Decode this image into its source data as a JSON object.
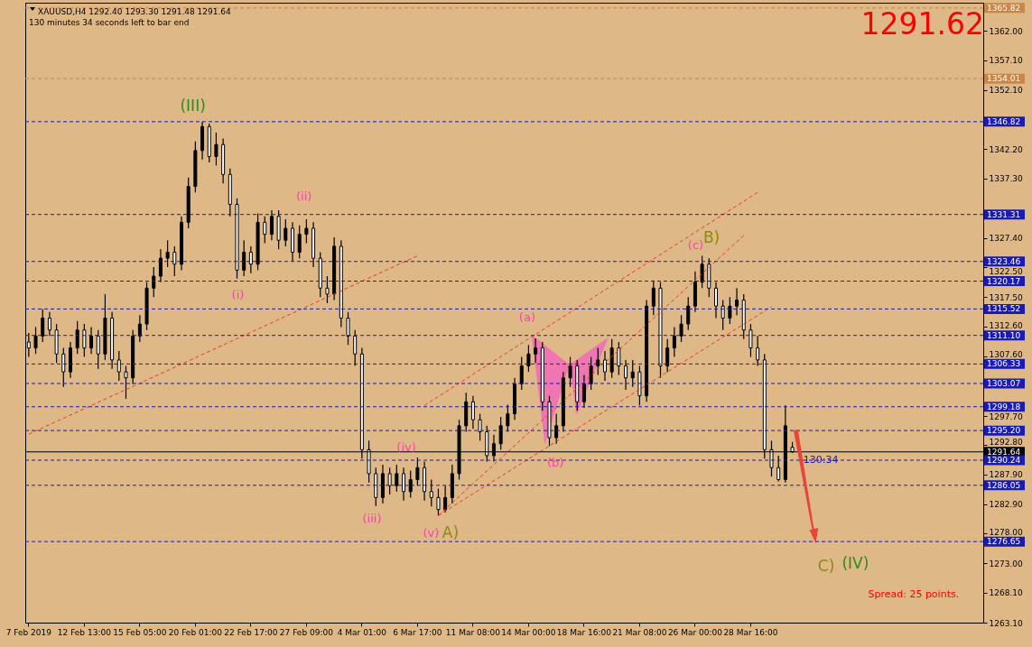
{
  "chart_data": {
    "type": "candlestick",
    "title": "XAUUSD,H4  1292.40 1293.30 1291.48 1291.64",
    "subtitle": "130 minutes 34 seconds left to bar end",
    "color": "#000000",
    "categories": [
      "7 Feb 2019",
      null,
      null,
      null,
      null,
      null,
      null,
      null,
      "12 Feb 13:00",
      null,
      null,
      null,
      null,
      null,
      null,
      null,
      "15 Feb 05:00",
      null,
      null,
      null,
      null,
      null,
      null,
      null,
      "20 Feb 01:00",
      null,
      null,
      null,
      null,
      null,
      null,
      null,
      "22 Feb 17:00",
      null,
      null,
      null,
      null,
      null,
      null,
      null,
      "27 Feb 09:00",
      null,
      null,
      null,
      null,
      null,
      null,
      null,
      "4 Mar 01:00",
      null,
      null,
      null,
      null,
      null,
      null,
      null,
      "6 Mar 17:00",
      null,
      null,
      null,
      null,
      null,
      null,
      null,
      "11 Mar 08:00",
      null,
      null,
      null,
      null,
      null,
      null,
      null,
      "14 Mar 00:00",
      null,
      null,
      null,
      null,
      null,
      null,
      null,
      "18 Mar 16:00",
      null,
      null,
      null,
      null,
      null,
      null,
      null,
      "21 Mar 08:00",
      null,
      null,
      null,
      null,
      null,
      null,
      null,
      "26 Mar 00:00",
      null,
      null,
      null,
      null,
      null,
      null,
      null,
      "28 Mar 16:00",
      null,
      null,
      null,
      null,
      null,
      null,
      null,
      null,
      null,
      null,
      null,
      null,
      null,
      null,
      null,
      null,
      null,
      null,
      null,
      null,
      null,
      null,
      null,
      null,
      null,
      null,
      null,
      null,
      null,
      null,
      null,
      null,
      null
    ],
    "ohlc": [
      [
        1310,
        1311.5,
        1307.5,
        1309
      ],
      [
        1309,
        1312.5,
        1308,
        1311
      ],
      [
        1311,
        1315.5,
        1310,
        1314
      ],
      [
        1314,
        1315,
        1311,
        1312
      ],
      [
        1312,
        1313,
        1306.5,
        1308
      ],
      [
        1308,
        1309,
        1302.5,
        1305
      ],
      [
        1305,
        1310,
        1304,
        1309
      ],
      [
        1309,
        1313.5,
        1308,
        1312
      ],
      [
        1312,
        1313,
        1307.5,
        1309
      ],
      [
        1309,
        1312.5,
        1308,
        1311
      ],
      [
        1311,
        1312,
        1305.5,
        1308
      ],
      [
        1308,
        1318,
        1307,
        1314
      ],
      [
        1314,
        1315,
        1305.5,
        1307
      ],
      [
        1307,
        1308.5,
        1303.5,
        1305
      ],
      [
        1305,
        1306,
        1300.5,
        1304
      ],
      [
        1304,
        1312,
        1303,
        1311
      ],
      [
        1311,
        1314.5,
        1310,
        1313
      ],
      [
        1313,
        1320,
        1312,
        1319
      ],
      [
        1319,
        1322.5,
        1317.5,
        1321
      ],
      [
        1321,
        1325.5,
        1320,
        1324
      ],
      [
        1324,
        1327,
        1322.5,
        1325
      ],
      [
        1325,
        1326,
        1321,
        1323
      ],
      [
        1323,
        1331,
        1322,
        1330
      ],
      [
        1330,
        1337.5,
        1329,
        1336
      ],
      [
        1336,
        1343.5,
        1335,
        1342
      ],
      [
        1342,
        1346.8,
        1340.5,
        1346
      ],
      [
        1346,
        1346.5,
        1340,
        1341
      ],
      [
        1341,
        1345,
        1339.5,
        1343
      ],
      [
        1343,
        1344,
        1336.5,
        1338
      ],
      [
        1338,
        1339,
        1331,
        1333
      ],
      [
        1333,
        1334,
        1320.6,
        1322
      ],
      [
        1322,
        1327,
        1321,
        1325
      ],
      [
        1325,
        1326,
        1321.5,
        1323
      ],
      [
        1323,
        1331.5,
        1322,
        1330
      ],
      [
        1330,
        1331,
        1326.5,
        1328
      ],
      [
        1328,
        1332,
        1327,
        1331
      ],
      [
        1331,
        1332,
        1325.5,
        1327
      ],
      [
        1327,
        1330.5,
        1326,
        1329
      ],
      [
        1329,
        1330,
        1323.5,
        1325
      ],
      [
        1325,
        1329.5,
        1324,
        1328
      ],
      [
        1328,
        1330.5,
        1326.5,
        1329
      ],
      [
        1329,
        1330,
        1322.5,
        1324
      ],
      [
        1324,
        1325,
        1317.5,
        1319
      ],
      [
        1319,
        1321,
        1316.5,
        1318
      ],
      [
        1318,
        1327.5,
        1317,
        1326
      ],
      [
        1326,
        1327,
        1312.5,
        1314
      ],
      [
        1314,
        1315,
        1309.5,
        1311
      ],
      [
        1311,
        1312,
        1306,
        1308
      ],
      [
        1308,
        1309,
        1290.5,
        1292
      ],
      [
        1292,
        1293.5,
        1286.5,
        1288
      ],
      [
        1288,
        1289,
        1282.6,
        1284
      ],
      [
        1284,
        1289.5,
        1283,
        1288
      ],
      [
        1288,
        1289,
        1284.5,
        1286
      ],
      [
        1286,
        1289.5,
        1285,
        1288
      ],
      [
        1288,
        1289,
        1283.5,
        1285
      ],
      [
        1285,
        1288.5,
        1284,
        1287
      ],
      [
        1287,
        1290.7,
        1286,
        1289
      ],
      [
        1289,
        1290,
        1283.5,
        1285
      ],
      [
        1285,
        1287,
        1282.5,
        1284
      ],
      [
        1284,
        1285.5,
        1281,
        1282
      ],
      [
        1282,
        1286,
        1281.5,
        1284
      ],
      [
        1284,
        1289.5,
        1283,
        1288
      ],
      [
        1288,
        1297,
        1287,
        1296
      ],
      [
        1296,
        1301.5,
        1295,
        1300
      ],
      [
        1300,
        1301,
        1295.5,
        1297
      ],
      [
        1297,
        1298,
        1293.5,
        1295
      ],
      [
        1295,
        1296,
        1290,
        1291
      ],
      [
        1291,
        1294.5,
        1290,
        1293
      ],
      [
        1293,
        1297.5,
        1292,
        1296
      ],
      [
        1296,
        1299.5,
        1295,
        1298
      ],
      [
        1298,
        1304,
        1297,
        1303
      ],
      [
        1303,
        1307.5,
        1302,
        1306
      ],
      [
        1306,
        1309.5,
        1305,
        1308
      ],
      [
        1308,
        1310.6,
        1306.5,
        1309
      ],
      [
        1309,
        1310,
        1298.5,
        1300
      ],
      [
        1300,
        1301,
        1292.6,
        1294
      ],
      [
        1294,
        1298,
        1293,
        1296
      ],
      [
        1296,
        1305,
        1295,
        1304
      ],
      [
        1304,
        1307.5,
        1302.5,
        1306
      ],
      [
        1306,
        1307,
        1298.5,
        1300
      ],
      [
        1300,
        1304.5,
        1299,
        1303
      ],
      [
        1303,
        1307.5,
        1302,
        1306
      ],
      [
        1306,
        1309,
        1304.5,
        1307
      ],
      [
        1307,
        1308.5,
        1303.5,
        1305
      ],
      [
        1305,
        1310.5,
        1304,
        1309
      ],
      [
        1309,
        1310,
        1304.5,
        1306
      ],
      [
        1306,
        1307,
        1302,
        1304
      ],
      [
        1304,
        1307,
        1302.5,
        1305
      ],
      [
        1305,
        1306,
        1299.4,
        1301
      ],
      [
        1301,
        1317,
        1300,
        1316
      ],
      [
        1316,
        1320.3,
        1314.5,
        1319
      ],
      [
        1319,
        1320,
        1304,
        1306
      ],
      [
        1306,
        1310.5,
        1305,
        1309
      ],
      [
        1309,
        1312.5,
        1307.5,
        1311
      ],
      [
        1311,
        1314.5,
        1310,
        1313
      ],
      [
        1313,
        1317.5,
        1312,
        1316
      ],
      [
        1316,
        1321.8,
        1315,
        1320
      ],
      [
        1320,
        1324.4,
        1319,
        1323
      ],
      [
        1323,
        1324,
        1317.5,
        1319
      ],
      [
        1319,
        1320,
        1314,
        1316
      ],
      [
        1316,
        1317,
        1312,
        1314
      ],
      [
        1314,
        1317.5,
        1313,
        1316
      ],
      [
        1316,
        1319,
        1314.5,
        1317
      ],
      [
        1317,
        1318,
        1310.5,
        1312
      ],
      [
        1312,
        1313,
        1307.5,
        1309
      ],
      [
        1309,
        1311,
        1306,
        1307
      ],
      [
        1307,
        1308,
        1290.5,
        1292
      ],
      [
        1292,
        1293.5,
        1287.5,
        1289
      ],
      [
        1289,
        1291,
        1286.7,
        1287
      ],
      [
        1287,
        1299.4,
        1286.5,
        1296
      ],
      [
        1292.4,
        1293.3,
        1291.48,
        1291.64
      ],
      null,
      null,
      null,
      null,
      null,
      null,
      null,
      null,
      null,
      null,
      null,
      null,
      null,
      null,
      null,
      null,
      null,
      null,
      null,
      null,
      null,
      null,
      null,
      null,
      null,
      null,
      null
    ],
    "series": [
      {
        "type": "line",
        "color": "#e83a2a",
        "line_style": "dashed",
        "values": [
          1294.6,
          null,
          null,
          null,
          null,
          null,
          null,
          null,
          null,
          null,
          null,
          null,
          null,
          null,
          null,
          null,
          null,
          null,
          null,
          null,
          null,
          null,
          null,
          null,
          null,
          null,
          null,
          null,
          null,
          null,
          null,
          null,
          null,
          null,
          null,
          null,
          null,
          null,
          null,
          null,
          null,
          null,
          null,
          null,
          null,
          null,
          null,
          null,
          null,
          null,
          null,
          null,
          null,
          null,
          null,
          null,
          1324.4,
          null,
          null,
          null,
          null,
          null,
          null,
          null,
          null,
          null,
          null,
          null,
          null,
          null,
          null,
          null,
          null,
          null,
          null,
          null,
          null,
          null,
          null,
          null,
          null,
          null,
          null,
          null,
          null,
          null,
          null,
          null,
          null,
          null,
          null,
          null,
          null,
          null,
          null,
          null,
          null,
          null,
          null,
          null,
          null,
          null,
          null,
          null,
          null,
          null,
          null,
          null,
          null,
          null,
          null,
          null,
          null,
          null,
          null,
          null,
          null,
          null,
          null,
          null,
          null,
          null,
          null,
          null,
          null,
          null,
          null,
          null,
          null,
          null,
          null,
          null,
          null,
          null,
          null,
          null,
          null,
          null
        ]
      },
      {
        "type": "line",
        "color": "#e83a2a",
        "line_style": "dashed",
        "values": [
          null,
          null,
          null,
          null,
          null,
          null,
          null,
          null,
          null,
          null,
          null,
          null,
          null,
          null,
          null,
          null,
          null,
          null,
          null,
          null,
          null,
          null,
          null,
          null,
          null,
          null,
          null,
          null,
          null,
          null,
          null,
          null,
          null,
          null,
          null,
          null,
          null,
          null,
          null,
          null,
          null,
          null,
          null,
          null,
          null,
          null,
          null,
          null,
          null,
          null,
          null,
          null,
          null,
          null,
          null,
          null,
          null,
          1299.4,
          null,
          null,
          null,
          null,
          null,
          null,
          null,
          null,
          null,
          null,
          null,
          null,
          null,
          null,
          null,
          null,
          null,
          null,
          null,
          null,
          null,
          null,
          null,
          null,
          null,
          null,
          null,
          null,
          null,
          null,
          null,
          null,
          null,
          null,
          null,
          null,
          null,
          null,
          null,
          null,
          null,
          null,
          null,
          null,
          null,
          null,
          null,
          1335.0,
          null,
          null,
          null,
          null,
          null,
          null,
          null,
          null,
          null,
          null,
          null,
          null,
          null,
          null,
          null,
          null,
          null,
          null,
          null,
          null,
          null,
          null,
          null,
          null,
          null,
          null,
          null,
          null,
          null,
          null,
          null,
          null
        ]
      },
      {
        "type": "line",
        "color": "#e83a2a",
        "line_style": "dashed",
        "values": [
          null,
          null,
          null,
          null,
          null,
          null,
          null,
          null,
          null,
          null,
          null,
          null,
          null,
          null,
          null,
          null,
          null,
          null,
          null,
          null,
          null,
          null,
          null,
          null,
          null,
          null,
          null,
          null,
          null,
          null,
          null,
          null,
          null,
          null,
          null,
          null,
          null,
          null,
          null,
          null,
          null,
          null,
          null,
          null,
          null,
          null,
          null,
          null,
          null,
          null,
          null,
          null,
          null,
          null,
          null,
          null,
          null,
          null,
          null,
          1281.0,
          null,
          null,
          null,
          null,
          null,
          null,
          null,
          null,
          null,
          null,
          null,
          null,
          null,
          null,
          null,
          null,
          null,
          null,
          null,
          null,
          null,
          null,
          null,
          null,
          null,
          null,
          null,
          null,
          null,
          null,
          null,
          null,
          null,
          null,
          null,
          null,
          null,
          null,
          null,
          null,
          null,
          null,
          null,
          1327.8,
          null,
          null,
          null,
          null,
          null,
          null,
          null,
          null,
          null,
          null,
          null,
          null,
          null,
          null,
          null,
          null,
          null,
          null,
          null,
          null,
          null,
          null,
          null,
          null,
          null,
          null,
          null,
          null,
          null,
          null,
          null,
          null,
          null,
          null
        ]
      },
      {
        "type": "line",
        "color": "#e83a2a",
        "line_style": "dashed",
        "values": [
          null,
          null,
          null,
          null,
          null,
          null,
          null,
          null,
          null,
          null,
          null,
          null,
          null,
          null,
          null,
          null,
          null,
          null,
          null,
          null,
          null,
          null,
          null,
          null,
          null,
          null,
          null,
          null,
          null,
          null,
          null,
          null,
          null,
          null,
          null,
          null,
          null,
          null,
          null,
          null,
          null,
          null,
          null,
          null,
          null,
          null,
          null,
          null,
          null,
          null,
          null,
          null,
          null,
          null,
          null,
          null,
          null,
          null,
          null,
          1281.0,
          null,
          null,
          null,
          null,
          null,
          null,
          null,
          null,
          null,
          null,
          null,
          null,
          null,
          null,
          null,
          null,
          null,
          null,
          null,
          null,
          null,
          null,
          null,
          null,
          null,
          null,
          null,
          null,
          null,
          null,
          null,
          null,
          null,
          null,
          null,
          null,
          null,
          null,
          null,
          null,
          null,
          null,
          null,
          null,
          null,
          null,
          null,
          1315.9,
          null,
          null,
          null,
          null,
          null,
          null,
          null,
          null,
          null,
          null,
          null,
          null,
          null,
          null,
          null,
          null,
          null,
          null,
          null,
          null,
          null,
          null,
          null,
          null,
          null,
          null,
          null,
          null,
          null,
          null
        ]
      }
    ],
    "ylim": [
      1263.1,
      1366.7
    ],
    "yticks": [
      {
        "value": 1263.1,
        "label": "1263.10"
      },
      {
        "value": 1268.1,
        "label": "1268.10"
      },
      {
        "value": 1273,
        "label": "1273.00"
      },
      {
        "value": 1278,
        "label": "1278.00"
      },
      {
        "value": 1282.9,
        "label": "1282.90"
      },
      {
        "value": 1287.9,
        "label": "1287.90"
      },
      {
        "value": 1292.8,
        "label": "1292.80"
      },
      {
        "value": 1297.7,
        "label": "1297.70"
      },
      {
        "value": 1307.6,
        "label": "1307.60"
      },
      {
        "value": 1312.6,
        "label": "1312.60"
      },
      {
        "value": 1317.5,
        "label": "1317.50"
      },
      {
        "value": 1322.5,
        "label": "1322.50"
      },
      {
        "value": 1327.4,
        "label": "1327.40"
      },
      {
        "value": 1337.3,
        "label": "1337.30"
      },
      {
        "value": 1342.2,
        "label": "1342.20"
      },
      {
        "value": 1352.1,
        "label": "1352.10"
      },
      {
        "value": 1357.1,
        "label": "1357.10"
      },
      {
        "value": 1362,
        "label": "1362.00"
      }
    ],
    "ref_lines": [
      {
        "axis": "y",
        "value": 1365.82,
        "label": "1365.82",
        "color": "#c8874a",
        "line_style": "dashed"
      },
      {
        "axis": "y",
        "value": 1354.01,
        "label": "1354.01",
        "color": "#c8874a",
        "line_style": "dashed"
      },
      {
        "axis": "y",
        "value": 1346.82,
        "label": "1346.82",
        "color": "#1a1ab4",
        "line_style": "dashed"
      },
      {
        "axis": "y",
        "value": 1331.31,
        "label": "1331.31",
        "color": "#1a1ab4",
        "line_style": "dashed"
      },
      {
        "axis": "y",
        "value": 1323.46,
        "label": "1323.46",
        "color": "#1a1ab4",
        "line_style": "dashed"
      },
      {
        "axis": "y",
        "value": 1320.17,
        "label": "1320.17",
        "color": "#1a1ab4",
        "line_style": "dashed"
      },
      {
        "axis": "y",
        "value": 1315.52,
        "label": "1315.52",
        "color": "#1a1ab4",
        "line_style": "dashed"
      },
      {
        "axis": "y",
        "value": 1311.1,
        "label": "1311.10",
        "color": "#1a1ab4",
        "line_style": "dashed"
      },
      {
        "axis": "y",
        "value": 1306.33,
        "label": "1306.33",
        "color": "#1a1ab4",
        "line_style": "dashed"
      },
      {
        "axis": "y",
        "value": 1303.07,
        "label": "1303.07",
        "color": "#1a1ab4",
        "line_style": "dashed"
      },
      {
        "axis": "y",
        "value": 1299.18,
        "label": "1299.18",
        "color": "#1a1ab4",
        "line_style": "dashed"
      },
      {
        "axis": "y",
        "value": 1295.2,
        "label": "1295.20",
        "color": "#1a1ab4",
        "line_style": "dashed"
      },
      {
        "axis": "y",
        "value": 1291.64,
        "label": "1291.64",
        "color": "#000000",
        "line_style": "solid"
      },
      {
        "axis": "y",
        "value": 1290.24,
        "label": "1290.24",
        "color": "#1a1ab4",
        "line_style": "dashed"
      },
      {
        "axis": "y",
        "value": 1286.05,
        "label": "1286.05",
        "color": "#1a1ab4",
        "line_style": "dashed"
      },
      {
        "axis": "y",
        "value": 1276.65,
        "label": "1276.65",
        "color": "#1a1ab4",
        "line_style": "dashed"
      }
    ],
    "annotations": [
      "1291.62",
      "(III)",
      "(i)",
      "(ii)",
      "(iii)",
      "(iv)",
      "(v)",
      "A)",
      "(a)",
      "(b)",
      "(c)",
      "B)",
      "C)",
      "(IV)",
      "130:34",
      "Spread: 25 points."
    ]
  }
}
